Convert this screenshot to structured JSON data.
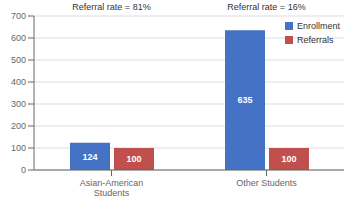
{
  "chart_data": {
    "type": "bar",
    "categories": [
      "Asian-American\nStudents",
      "Other Students"
    ],
    "series": [
      {
        "name": "Enrollment",
        "color": "#4472C4",
        "values": [
          124,
          635
        ]
      },
      {
        "name": "Referrals",
        "color": "#C0504D",
        "values": [
          100,
          100
        ]
      }
    ],
    "ylim": [
      0,
      700
    ],
    "yticks": [
      0,
      100,
      200,
      300,
      400,
      500,
      600,
      700
    ],
    "grid": true,
    "legend": "upper right",
    "data_labels": true,
    "annotations": [
      "Referral rate = 81%",
      "Referral rate = 16%"
    ]
  }
}
